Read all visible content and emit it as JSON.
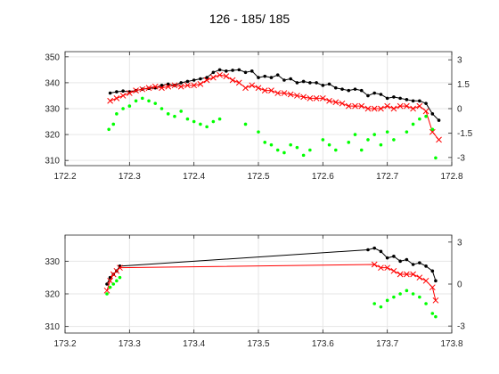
{
  "title": "126 - 185/ 185",
  "chart_data": [
    {
      "type": "line",
      "xlim": [
        172.2,
        172.8
      ],
      "ylim": [
        308,
        352
      ],
      "ylim_right": [
        -3.5,
        3.5
      ],
      "xticks": [
        "172.2",
        "172.3",
        "172.4",
        "172.5",
        "172.6",
        "172.7",
        "172.8"
      ],
      "yticks": [
        "310",
        "320",
        "330",
        "340",
        "350"
      ],
      "yticks_right": [
        "-3",
        "-1.5",
        "0",
        "1.5",
        "3"
      ],
      "grid": true,
      "series": [
        {
          "color": "#000000",
          "marker": "dot",
          "axis": "left",
          "x": [
            172.27,
            172.28,
            172.29,
            172.3,
            172.31,
            172.32,
            172.33,
            172.34,
            172.35,
            172.36,
            172.37,
            172.38,
            172.39,
            172.4,
            172.41,
            172.42,
            172.43,
            172.44,
            172.45,
            172.46,
            172.47,
            172.48,
            172.49,
            172.5,
            172.51,
            172.52,
            172.53,
            172.54,
            172.55,
            172.56,
            172.57,
            172.58,
            172.59,
            172.6,
            172.61,
            172.62,
            172.63,
            172.64,
            172.65,
            172.66,
            172.67,
            172.68,
            172.69,
            172.7,
            172.71,
            172.72,
            172.73,
            172.74,
            172.75,
            172.76,
            172.77,
            172.78
          ],
          "values": [
            336,
            336.5,
            336.8,
            336.5,
            337,
            337.5,
            337.8,
            338,
            339,
            339.5,
            339,
            340,
            340.5,
            341,
            341.5,
            342,
            344,
            345,
            344.5,
            344.8,
            345,
            344,
            344.5,
            342,
            342.5,
            342,
            343,
            341,
            341.5,
            340,
            340.5,
            340,
            340,
            339,
            339.5,
            338,
            337.5,
            337,
            337.5,
            337,
            335,
            336,
            335.5,
            334,
            334.5,
            334,
            333.5,
            333,
            333,
            332,
            328,
            325.5
          ]
        },
        {
          "color": "#ff0000",
          "marker": "x",
          "axis": "left",
          "x": [
            172.27,
            172.28,
            172.29,
            172.3,
            172.31,
            172.32,
            172.33,
            172.34,
            172.35,
            172.36,
            172.37,
            172.38,
            172.39,
            172.4,
            172.41,
            172.42,
            172.43,
            172.44,
            172.45,
            172.46,
            172.47,
            172.48,
            172.49,
            172.5,
            172.51,
            172.52,
            172.53,
            172.54,
            172.55,
            172.56,
            172.57,
            172.58,
            172.59,
            172.6,
            172.61,
            172.62,
            172.63,
            172.64,
            172.65,
            172.66,
            172.67,
            172.68,
            172.69,
            172.7,
            172.71,
            172.72,
            172.73,
            172.74,
            172.75,
            172.76,
            172.77,
            172.78
          ],
          "values": [
            333,
            334,
            335,
            336,
            337,
            337.5,
            338,
            338.5,
            338,
            338.5,
            339,
            338.5,
            339,
            339,
            339.5,
            341,
            342,
            343,
            342.5,
            341,
            340,
            338,
            339,
            338,
            337,
            337,
            336,
            336,
            335.5,
            335,
            334.5,
            334,
            334,
            334,
            333,
            332.5,
            332,
            331,
            331,
            331,
            330,
            330,
            330,
            331,
            330,
            331,
            331,
            330,
            331,
            329,
            321,
            318
          ]
        },
        {
          "color": "#00ff00",
          "marker": "dot",
          "axis": "left",
          "x": [
            172.268,
            172.275,
            172.28,
            172.29,
            172.3,
            172.31,
            172.32,
            172.33,
            172.34,
            172.35,
            172.36,
            172.37,
            172.38,
            172.39,
            172.4,
            172.41,
            172.42,
            172.43,
            172.44,
            172.48,
            172.5,
            172.51,
            172.52,
            172.53,
            172.54,
            172.55,
            172.56,
            172.57,
            172.58,
            172.6,
            172.61,
            172.62,
            172.64,
            172.65,
            172.66,
            172.67,
            172.68,
            172.69,
            172.7,
            172.71,
            172.73,
            172.74,
            172.75,
            172.76,
            172.77,
            172.775
          ],
          "values": [
            322,
            324,
            328,
            330,
            331,
            333,
            334,
            333,
            332,
            330,
            328,
            327,
            329,
            326,
            325,
            324,
            323,
            325,
            326,
            324,
            321,
            317,
            316,
            314,
            313,
            316,
            315,
            312,
            314,
            318,
            316,
            314,
            317,
            320,
            314,
            318,
            320,
            316,
            321,
            318,
            321,
            324,
            326,
            327,
            322,
            311
          ]
        }
      ]
    },
    {
      "type": "line",
      "xlim": [
        173.2,
        173.8
      ],
      "ylim": [
        308,
        338
      ],
      "ylim_right": [
        -3.5,
        3.5
      ],
      "xticks": [
        "173.2",
        "173.3",
        "173.4",
        "173.5",
        "173.6",
        "173.7",
        "173.8"
      ],
      "yticks": [
        "310",
        "320",
        "330"
      ],
      "yticks_right": [
        "-3",
        "0",
        "3"
      ],
      "grid": true,
      "series": [
        {
          "color": "#000000",
          "marker": "dot",
          "axis": "left",
          "x": [
            173.265,
            173.27,
            173.275,
            173.28,
            173.285,
            173.67,
            173.68,
            173.69,
            173.7,
            173.71,
            173.72,
            173.73,
            173.74,
            173.75,
            173.76,
            173.77,
            173.775
          ],
          "values": [
            323,
            325,
            326,
            327,
            328.5,
            333.5,
            334,
            333,
            331,
            331.5,
            330,
            330.5,
            329,
            329.5,
            328.5,
            327,
            324
          ]
        },
        {
          "color": "#ff0000",
          "marker": "x",
          "axis": "left",
          "x": [
            173.265,
            173.27,
            173.275,
            173.28,
            173.285,
            173.68,
            173.69,
            173.7,
            173.71,
            173.72,
            173.73,
            173.74,
            173.75,
            173.76,
            173.77,
            173.775
          ],
          "values": [
            321,
            324,
            326,
            327,
            328,
            329,
            328,
            328,
            327,
            326,
            326,
            326,
            325,
            324,
            322,
            318
          ]
        },
        {
          "color": "#00ff00",
          "marker": "dot",
          "axis": "left",
          "x": [
            173.265,
            173.27,
            173.275,
            173.28,
            173.285,
            173.68,
            173.69,
            173.7,
            173.71,
            173.72,
            173.73,
            173.74,
            173.75,
            173.76,
            173.77,
            173.775
          ],
          "values": [
            320,
            322,
            323,
            324,
            325,
            317,
            316,
            318,
            319,
            320,
            321,
            320,
            319,
            317,
            314,
            313
          ]
        }
      ]
    }
  ]
}
